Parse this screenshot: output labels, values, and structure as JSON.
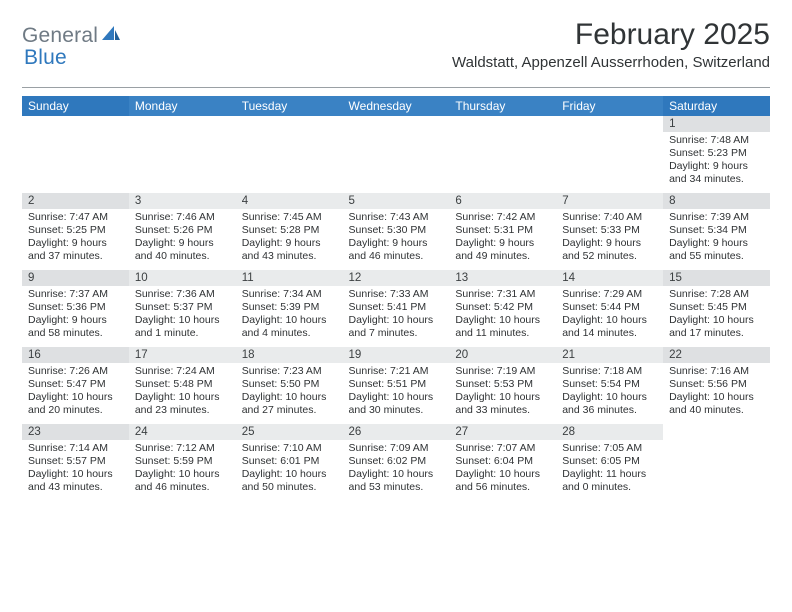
{
  "logo": {
    "part1": "General",
    "part2": "Blue"
  },
  "title": "February 2025",
  "location": "Waldstatt, Appenzell Ausserrhoden, Switzerland",
  "colors": {
    "header_bg": "#3a82c4",
    "header_bg_wkend": "#2f78bd",
    "daynum_bg": "#e9ebec",
    "daynum_bg_wkend": "#dee0e2",
    "text": "#2f3234",
    "logo_gray": "#6f7a84",
    "logo_blue": "#2f78bd"
  },
  "day_names": [
    "Sunday",
    "Monday",
    "Tuesday",
    "Wednesday",
    "Thursday",
    "Friday",
    "Saturday"
  ],
  "weeks": [
    [
      null,
      null,
      null,
      null,
      null,
      null,
      {
        "n": "1",
        "sr": "7:48 AM",
        "ss": "5:23 PM",
        "dl": "9 hours and 34 minutes."
      }
    ],
    [
      {
        "n": "2",
        "sr": "7:47 AM",
        "ss": "5:25 PM",
        "dl": "9 hours and 37 minutes."
      },
      {
        "n": "3",
        "sr": "7:46 AM",
        "ss": "5:26 PM",
        "dl": "9 hours and 40 minutes."
      },
      {
        "n": "4",
        "sr": "7:45 AM",
        "ss": "5:28 PM",
        "dl": "9 hours and 43 minutes."
      },
      {
        "n": "5",
        "sr": "7:43 AM",
        "ss": "5:30 PM",
        "dl": "9 hours and 46 minutes."
      },
      {
        "n": "6",
        "sr": "7:42 AM",
        "ss": "5:31 PM",
        "dl": "9 hours and 49 minutes."
      },
      {
        "n": "7",
        "sr": "7:40 AM",
        "ss": "5:33 PM",
        "dl": "9 hours and 52 minutes."
      },
      {
        "n": "8",
        "sr": "7:39 AM",
        "ss": "5:34 PM",
        "dl": "9 hours and 55 minutes."
      }
    ],
    [
      {
        "n": "9",
        "sr": "7:37 AM",
        "ss": "5:36 PM",
        "dl": "9 hours and 58 minutes."
      },
      {
        "n": "10",
        "sr": "7:36 AM",
        "ss": "5:37 PM",
        "dl": "10 hours and 1 minute."
      },
      {
        "n": "11",
        "sr": "7:34 AM",
        "ss": "5:39 PM",
        "dl": "10 hours and 4 minutes."
      },
      {
        "n": "12",
        "sr": "7:33 AM",
        "ss": "5:41 PM",
        "dl": "10 hours and 7 minutes."
      },
      {
        "n": "13",
        "sr": "7:31 AM",
        "ss": "5:42 PM",
        "dl": "10 hours and 11 minutes."
      },
      {
        "n": "14",
        "sr": "7:29 AM",
        "ss": "5:44 PM",
        "dl": "10 hours and 14 minutes."
      },
      {
        "n": "15",
        "sr": "7:28 AM",
        "ss": "5:45 PM",
        "dl": "10 hours and 17 minutes."
      }
    ],
    [
      {
        "n": "16",
        "sr": "7:26 AM",
        "ss": "5:47 PM",
        "dl": "10 hours and 20 minutes."
      },
      {
        "n": "17",
        "sr": "7:24 AM",
        "ss": "5:48 PM",
        "dl": "10 hours and 23 minutes."
      },
      {
        "n": "18",
        "sr": "7:23 AM",
        "ss": "5:50 PM",
        "dl": "10 hours and 27 minutes."
      },
      {
        "n": "19",
        "sr": "7:21 AM",
        "ss": "5:51 PM",
        "dl": "10 hours and 30 minutes."
      },
      {
        "n": "20",
        "sr": "7:19 AM",
        "ss": "5:53 PM",
        "dl": "10 hours and 33 minutes."
      },
      {
        "n": "21",
        "sr": "7:18 AM",
        "ss": "5:54 PM",
        "dl": "10 hours and 36 minutes."
      },
      {
        "n": "22",
        "sr": "7:16 AM",
        "ss": "5:56 PM",
        "dl": "10 hours and 40 minutes."
      }
    ],
    [
      {
        "n": "23",
        "sr": "7:14 AM",
        "ss": "5:57 PM",
        "dl": "10 hours and 43 minutes."
      },
      {
        "n": "24",
        "sr": "7:12 AM",
        "ss": "5:59 PM",
        "dl": "10 hours and 46 minutes."
      },
      {
        "n": "25",
        "sr": "7:10 AM",
        "ss": "6:01 PM",
        "dl": "10 hours and 50 minutes."
      },
      {
        "n": "26",
        "sr": "7:09 AM",
        "ss": "6:02 PM",
        "dl": "10 hours and 53 minutes."
      },
      {
        "n": "27",
        "sr": "7:07 AM",
        "ss": "6:04 PM",
        "dl": "10 hours and 56 minutes."
      },
      {
        "n": "28",
        "sr": "7:05 AM",
        "ss": "6:05 PM",
        "dl": "11 hours and 0 minutes."
      },
      null
    ]
  ],
  "labels": {
    "sunrise": "Sunrise:",
    "sunset": "Sunset:",
    "daylight": "Daylight:"
  }
}
